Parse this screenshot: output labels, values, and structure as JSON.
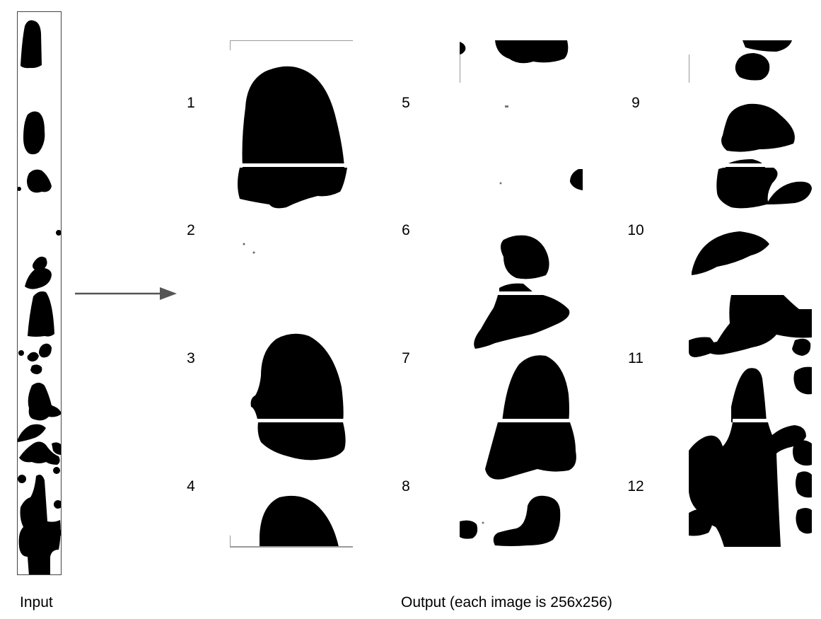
{
  "input": {
    "caption": "Input"
  },
  "output": {
    "caption": "Output (each image is 256x256)"
  },
  "tiles": [
    {
      "label": "1"
    },
    {
      "label": "2"
    },
    {
      "label": "3"
    },
    {
      "label": "4"
    },
    {
      "label": "5"
    },
    {
      "label": "6"
    },
    {
      "label": "7"
    },
    {
      "label": "8"
    },
    {
      "label": "9"
    },
    {
      "label": "10"
    },
    {
      "label": "11"
    },
    {
      "label": "12"
    }
  ],
  "colors": {
    "shape": "#000000",
    "background": "#ffffff",
    "frame": "#444444",
    "arrow": "#555555"
  }
}
